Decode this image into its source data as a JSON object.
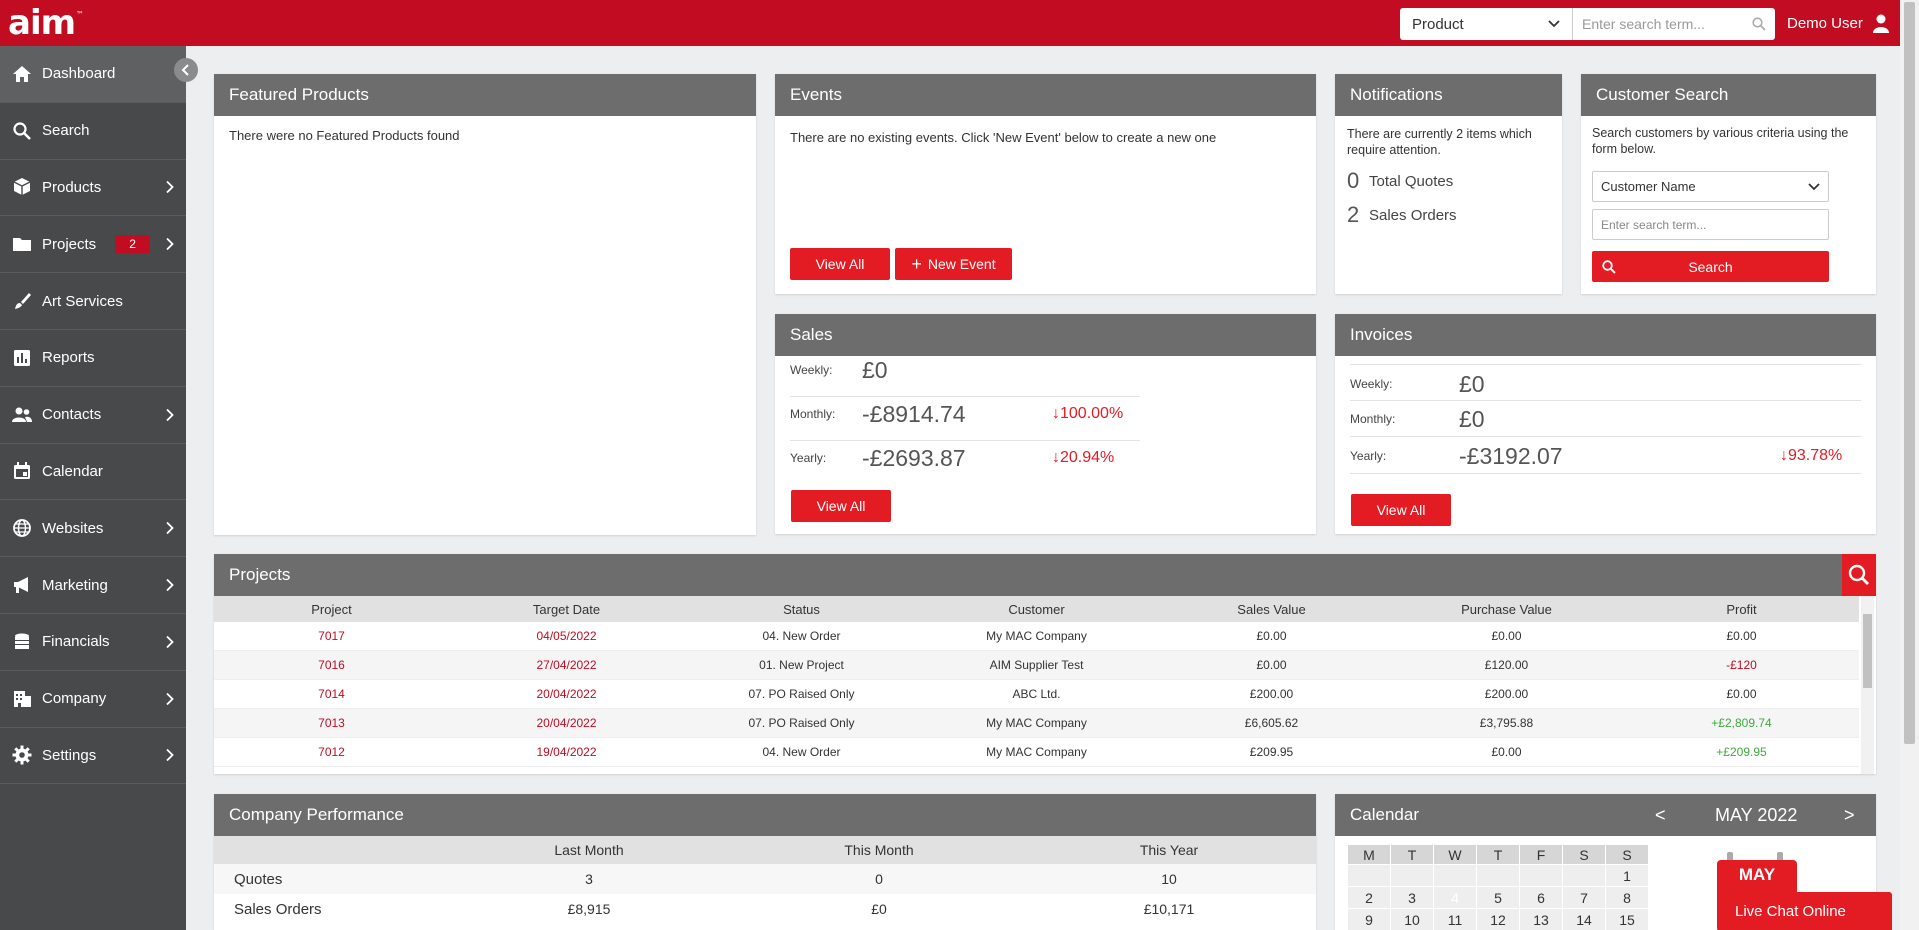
{
  "app": {
    "logo_text": "aim",
    "logo_mark": "™",
    "search_scope": "Product",
    "search_placeholder": "Enter search term...",
    "user_name": "Demo User"
  },
  "sidebar": {
    "items": [
      {
        "label": "Dashboard",
        "icon": "home-icon",
        "chevron": false
      },
      {
        "label": "Search",
        "icon": "search-icon",
        "chevron": false
      },
      {
        "label": "Products",
        "icon": "box-icon",
        "chevron": true
      },
      {
        "label": "Projects",
        "icon": "folder-icon",
        "chevron": true,
        "badge": "2"
      },
      {
        "label": "Art Services",
        "icon": "brush-icon",
        "chevron": false
      },
      {
        "label": "Reports",
        "icon": "chart-icon",
        "chevron": false
      },
      {
        "label": "Contacts",
        "icon": "people-icon",
        "chevron": true
      },
      {
        "label": "Calendar",
        "icon": "calendar-icon",
        "chevron": false
      },
      {
        "label": "Websites",
        "icon": "globe-icon",
        "chevron": true
      },
      {
        "label": "Marketing",
        "icon": "megaphone-icon",
        "chevron": true
      },
      {
        "label": "Financials",
        "icon": "coins-icon",
        "chevron": true
      },
      {
        "label": "Company",
        "icon": "building-icon",
        "chevron": true
      },
      {
        "label": "Settings",
        "icon": "gear-icon",
        "chevron": true
      }
    ]
  },
  "featured": {
    "title": "Featured Products",
    "empty": "There were no Featured Products found"
  },
  "events": {
    "title": "Events",
    "empty": "There are no existing events. Click 'New Event' below to create a new one",
    "view_all": "View All",
    "new_event": "New Event"
  },
  "notifications": {
    "title": "Notifications",
    "intro": "There are currently 2 items which require attention.",
    "quotes_count": "0",
    "quotes_label": "Total Quotes",
    "orders_count": "2",
    "orders_label": "Sales Orders"
  },
  "customer_search": {
    "title": "Customer Search",
    "intro": "Search customers by various criteria using the form below.",
    "criteria": "Customer Name",
    "placeholder": "Enter search term...",
    "button": "Search"
  },
  "sales": {
    "title": "Sales",
    "weekly_label": "Weekly:",
    "weekly_value": "£0",
    "monthly_label": "Monthly:",
    "monthly_value": "-£8914.74",
    "monthly_change": "↓100.00%",
    "yearly_label": "Yearly:",
    "yearly_value": "-£2693.87",
    "yearly_change": "↓20.94%",
    "view_all": "View All"
  },
  "invoices": {
    "title": "Invoices",
    "weekly_label": "Weekly:",
    "weekly_value": "£0",
    "monthly_label": "Monthly:",
    "monthly_value": "£0",
    "yearly_label": "Yearly:",
    "yearly_value": "-£3192.07",
    "yearly_change": "↓93.78%",
    "view_all": "View All"
  },
  "projects": {
    "title": "Projects",
    "columns": [
      "Project",
      "Target Date",
      "Status",
      "Customer",
      "Sales Value",
      "Purchase Value",
      "Profit"
    ],
    "rows": [
      {
        "project": "7017",
        "date": "04/05/2022",
        "status": "04. New Order",
        "customer": "My MAC Company",
        "sales": "£0.00",
        "purchase": "£0.00",
        "profit": "£0.00",
        "profit_tone": "neutral"
      },
      {
        "project": "7016",
        "date": "27/04/2022",
        "status": "01. New Project",
        "customer": "AIM Supplier Test",
        "sales": "£0.00",
        "purchase": "£120.00",
        "profit": "-£120",
        "profit_tone": "negative"
      },
      {
        "project": "7014",
        "date": "20/04/2022",
        "status": "07. PO Raised Only",
        "customer": "ABC Ltd.",
        "sales": "£200.00",
        "purchase": "£200.00",
        "profit": "£0.00",
        "profit_tone": "neutral"
      },
      {
        "project": "7013",
        "date": "20/04/2022",
        "status": "07. PO Raised Only",
        "customer": "My MAC Company",
        "sales": "£6,605.62",
        "purchase": "£3,795.88",
        "profit": "+£2,809.74",
        "profit_tone": "positive"
      },
      {
        "project": "7012",
        "date": "19/04/2022",
        "status": "04. New Order",
        "customer": "My MAC Company",
        "sales": "£209.95",
        "purchase": "£0.00",
        "profit": "+£209.95",
        "profit_tone": "positive"
      }
    ]
  },
  "performance": {
    "title": "Company Performance",
    "columns": [
      "",
      "Last Month",
      "This Month",
      "This Year"
    ],
    "rows": [
      {
        "label": "Quotes",
        "last": "3",
        "this": "0",
        "year": "10"
      },
      {
        "label": "Sales Orders",
        "last": "£8,915",
        "this": "£0",
        "year": "£10,171"
      }
    ]
  },
  "calendar": {
    "title": "Calendar",
    "month": "MAY 2022",
    "prev": "<",
    "next": ">",
    "badge": "MAY",
    "weekdays": [
      "M",
      "T",
      "W",
      "T",
      "F",
      "S",
      "S"
    ],
    "weeks": [
      [
        "",
        "",
        "",
        "",
        "",
        "",
        "1"
      ],
      [
        "2",
        "3",
        "4",
        "5",
        "6",
        "7",
        "8"
      ],
      [
        "9",
        "10",
        "11",
        "12",
        "13",
        "14",
        "15"
      ]
    ]
  },
  "livechat": {
    "label": "Live Chat Online"
  },
  "colors": {
    "brand": "#c10c22",
    "accent": "#e31b23",
    "positive": "#3caa3c"
  }
}
